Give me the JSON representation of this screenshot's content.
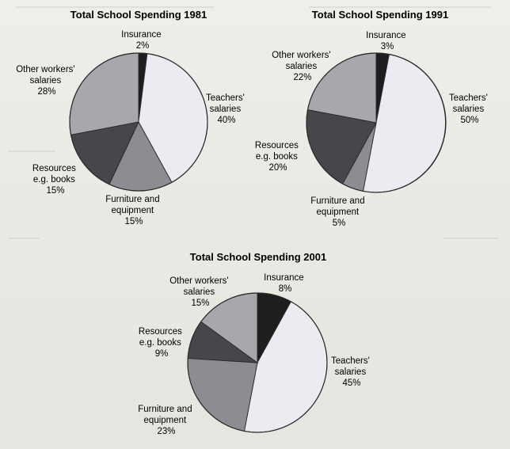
{
  "chart_data": [
    {
      "type": "pie",
      "title": "Total School Spending 1981",
      "slices": [
        {
          "label": [
            "Insurance"
          ],
          "value": 2,
          "value_label": "2%",
          "color": "#1e1e1e"
        },
        {
          "label": [
            "Teachers'",
            "salaries"
          ],
          "value": 40,
          "value_label": "40%",
          "color": "#ebebf1"
        },
        {
          "label": [
            "Furniture and",
            "equipment"
          ],
          "value": 15,
          "value_label": "15%",
          "color": "#8c8c92"
        },
        {
          "label": [
            "Resources",
            "e.g. books"
          ],
          "value": 15,
          "value_label": "15%",
          "color": "#46464b"
        },
        {
          "label": [
            "Other workers'",
            "salaries"
          ],
          "value": 28,
          "value_label": "28%",
          "color": "#a7a7ae"
        }
      ]
    },
    {
      "type": "pie",
      "title": "Total School Spending 1991",
      "slices": [
        {
          "label": [
            "Insurance"
          ],
          "value": 3,
          "value_label": "3%",
          "color": "#1e1e1e"
        },
        {
          "label": [
            "Teachers'",
            "salaries"
          ],
          "value": 50,
          "value_label": "50%",
          "color": "#ebebf1"
        },
        {
          "label": [
            "Furniture and",
            "equipment"
          ],
          "value": 5,
          "value_label": "5%",
          "color": "#8c8c92"
        },
        {
          "label": [
            "Resources",
            "e.g. books"
          ],
          "value": 20,
          "value_label": "20%",
          "color": "#46464b"
        },
        {
          "label": [
            "Other workers'",
            "salaries"
          ],
          "value": 22,
          "value_label": "22%",
          "color": "#a7a7ae"
        }
      ]
    },
    {
      "type": "pie",
      "title": "Total School Spending 2001",
      "slices": [
        {
          "label": [
            "Insurance"
          ],
          "value": 8,
          "value_label": "8%",
          "color": "#1e1e1e"
        },
        {
          "label": [
            "Teachers'",
            "salaries"
          ],
          "value": 45,
          "value_label": "45%",
          "color": "#ebebf1"
        },
        {
          "label": [
            "Furniture and",
            "equipment"
          ],
          "value": 23,
          "value_label": "23%",
          "color": "#8c8c92"
        },
        {
          "label": [
            "Resources",
            "e.g. books"
          ],
          "value": 9,
          "value_label": "9%",
          "color": "#46464b"
        },
        {
          "label": [
            "Other workers'",
            "salaries"
          ],
          "value": 15,
          "value_label": "15%",
          "color": "#a7a7ae"
        }
      ]
    }
  ]
}
